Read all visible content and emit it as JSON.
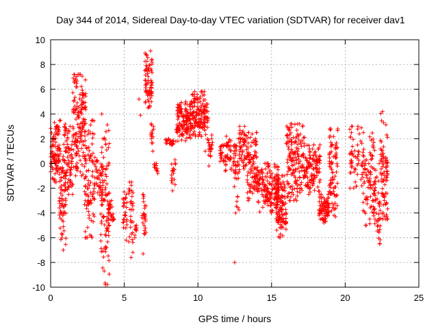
{
  "chart_data": {
    "type": "scatter",
    "title": "Day 344 of 2014, Sidereal Day-to-day VTEC variation (SDTVAR) for receiver dav1",
    "xlabel": "GPS time / hours",
    "ylabel": "SDTVAR / TECUs",
    "xlim": [
      0,
      25
    ],
    "ylim": [
      -10,
      10
    ],
    "xticks": [
      0,
      5,
      10,
      15,
      20,
      25
    ],
    "yticks": [
      -10,
      -8,
      -6,
      -4,
      -2,
      0,
      2,
      4,
      6,
      8,
      10
    ],
    "grid": true,
    "marker": "+",
    "color": "#ff0000",
    "clusters": [
      {
        "x0": 0.0,
        "x1": 0.6,
        "ymin": -1.5,
        "ymax": 3.3,
        "n": 90
      },
      {
        "x0": 0.55,
        "x1": 1.05,
        "ymin": -7.0,
        "ymax": 3.5,
        "n": 90
      },
      {
        "x0": 1.0,
        "x1": 1.5,
        "ymin": -2.5,
        "ymax": 3.0,
        "n": 60
      },
      {
        "x0": 1.5,
        "x1": 2.4,
        "ymin": -1.0,
        "ymax": 7.2,
        "n": 150
      },
      {
        "x0": 2.3,
        "x1": 3.0,
        "ymin": -6.0,
        "ymax": 3.5,
        "n": 90
      },
      {
        "x0": 3.0,
        "x1": 3.6,
        "ymin": -3.0,
        "ymax": 0.5,
        "n": 40
      },
      {
        "x0": 3.4,
        "x1": 4.0,
        "ymin": -9.8,
        "ymax": 4.0,
        "n": 90
      },
      {
        "x0": 3.9,
        "x1": 4.3,
        "ymin": -5.0,
        "ymax": -3.0,
        "n": 25
      },
      {
        "x0": 4.9,
        "x1": 5.2,
        "ymin": -6.2,
        "ymax": -2.3,
        "n": 25
      },
      {
        "x0": 5.3,
        "x1": 5.6,
        "ymin": -7.6,
        "ymax": -1.5,
        "n": 30
      },
      {
        "x0": 5.7,
        "x1": 5.9,
        "ymin": -6.0,
        "ymax": -5.0,
        "n": 8
      },
      {
        "x0": 6.2,
        "x1": 6.5,
        "ymin": -7.3,
        "ymax": -2.5,
        "n": 25
      },
      {
        "x0": 6.4,
        "x1": 6.9,
        "ymin": 4.5,
        "ymax": 9.1,
        "n": 70
      },
      {
        "x0": 6.8,
        "x1": 7.0,
        "ymin": 1.0,
        "ymax": 3.2,
        "n": 12
      },
      {
        "x0": 7.0,
        "x1": 7.3,
        "ymin": -0.8,
        "ymax": 0.0,
        "n": 10
      },
      {
        "x0": 7.8,
        "x1": 8.4,
        "ymin": 1.5,
        "ymax": 2.0,
        "n": 25
      },
      {
        "x0": 8.2,
        "x1": 8.5,
        "ymin": -2.2,
        "ymax": 0.3,
        "n": 15
      },
      {
        "x0": 8.5,
        "x1": 9.5,
        "ymin": 1.8,
        "ymax": 5.0,
        "n": 130
      },
      {
        "x0": 9.5,
        "x1": 10.5,
        "ymin": 2.2,
        "ymax": 5.8,
        "n": 130
      },
      {
        "x0": 10.4,
        "x1": 10.7,
        "ymin": 1.0,
        "ymax": 4.8,
        "n": 25
      },
      {
        "x0": 10.7,
        "x1": 11.0,
        "ymin": -0.2,
        "ymax": 2.3,
        "n": 20
      },
      {
        "x0": 11.5,
        "x1": 11.9,
        "ymin": -0.6,
        "ymax": 1.5,
        "n": 25
      },
      {
        "x0": 11.9,
        "x1": 12.3,
        "ymin": -0.5,
        "ymax": 2.2,
        "n": 30
      },
      {
        "x0": 12.4,
        "x1": 12.8,
        "ymin": -4.0,
        "ymax": 2.0,
        "n": 40
      },
      {
        "x0": 12.8,
        "x1": 13.3,
        "ymin": -0.5,
        "ymax": 3.0,
        "n": 50
      },
      {
        "x0": 13.3,
        "x1": 14.0,
        "ymin": -3.0,
        "ymax": 2.5,
        "n": 90
      },
      {
        "x0": 14.0,
        "x1": 15.5,
        "ymin": -4.0,
        "ymax": 0.0,
        "n": 170
      },
      {
        "x0": 15.3,
        "x1": 16.0,
        "ymin": -6.0,
        "ymax": -1.0,
        "n": 110
      },
      {
        "x0": 16.0,
        "x1": 17.3,
        "ymin": -3.0,
        "ymax": 3.2,
        "n": 160
      },
      {
        "x0": 17.3,
        "x1": 18.3,
        "ymin": -2.5,
        "ymax": 1.5,
        "n": 110
      },
      {
        "x0": 18.2,
        "x1": 18.9,
        "ymin": -4.8,
        "ymax": -2.5,
        "n": 80
      },
      {
        "x0": 18.9,
        "x1": 19.5,
        "ymin": -4.3,
        "ymax": 2.8,
        "n": 80
      },
      {
        "x0": 20.3,
        "x1": 21.2,
        "ymin": -2.0,
        "ymax": 3.0,
        "n": 55
      },
      {
        "x0": 21.2,
        "x1": 22.0,
        "ymin": -5.0,
        "ymax": 2.5,
        "n": 80
      },
      {
        "x0": 21.9,
        "x1": 22.4,
        "ymin": -6.5,
        "ymax": 0.0,
        "n": 50
      },
      {
        "x0": 22.4,
        "x1": 22.9,
        "ymin": -4.5,
        "ymax": 4.2,
        "n": 80
      }
    ],
    "outliers": [
      {
        "x": 12.5,
        "y": -8.0
      },
      {
        "x": 6.0,
        "y": 5.2
      },
      {
        "x": 6.1,
        "y": 3.9
      },
      {
        "x": 19.5,
        "y": 2.8
      }
    ]
  }
}
